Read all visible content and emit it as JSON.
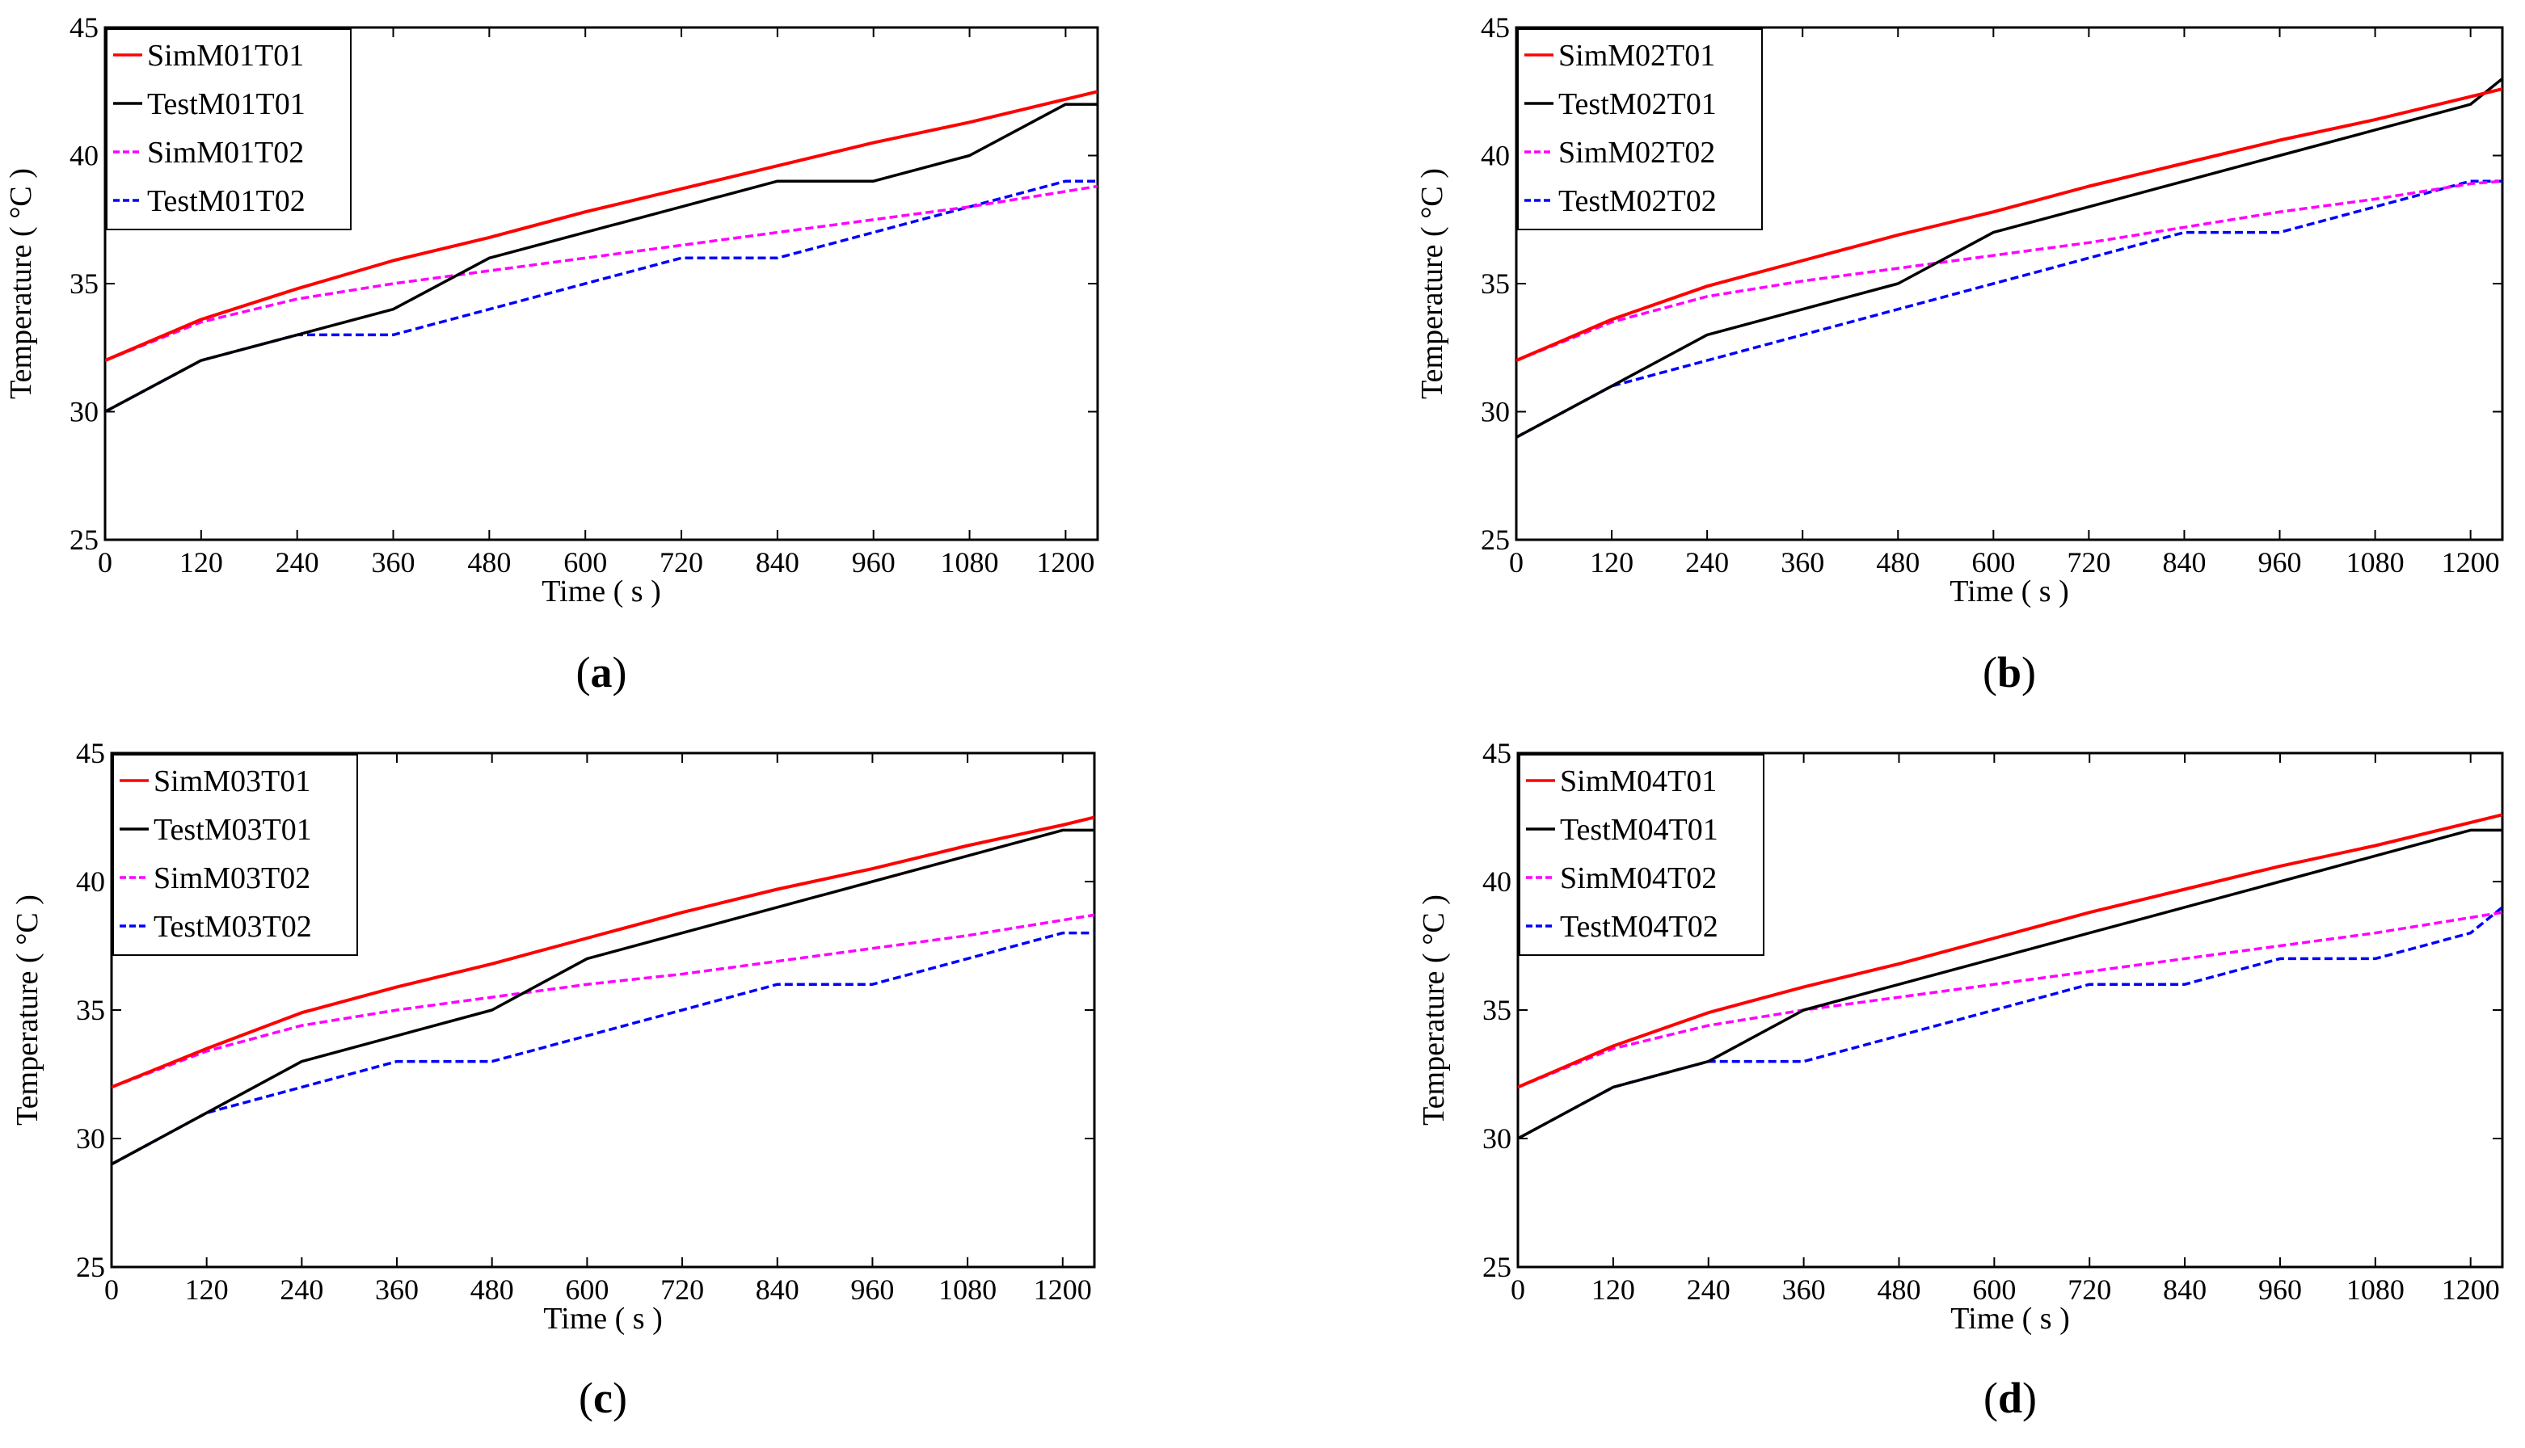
{
  "figure": {
    "panels": [
      "a",
      "b",
      "c",
      "d"
    ],
    "colors": {
      "sim_t01": "#ff0000",
      "test_t01": "#000000",
      "sim_t02": "#ff00ff",
      "test_t02": "#0000ff"
    }
  },
  "chart_data": [
    {
      "panel_label": "a",
      "type": "line",
      "xlabel": "Time ( s )",
      "ylabel": "Temperature ( °C )",
      "xlim": [
        0,
        1240
      ],
      "ylim": [
        25,
        45
      ],
      "xticks": [
        "0",
        "120",
        "240",
        "360",
        "480",
        "600",
        "720",
        "840",
        "960",
        "1080",
        "1200"
      ],
      "yticks": [
        "25",
        "30",
        "35",
        "40",
        "45"
      ],
      "legend_position": "top-left",
      "series": [
        {
          "name": "SimM01T01",
          "style": "solid",
          "color": "#ff0000",
          "x": [
            0,
            120,
            240,
            360,
            480,
            600,
            720,
            840,
            960,
            1080,
            1200,
            1240
          ],
          "y": [
            32,
            33.6,
            34.8,
            35.9,
            36.8,
            37.8,
            38.7,
            39.6,
            40.5,
            41.3,
            42.2,
            42.5
          ]
        },
        {
          "name": "TestM01T01",
          "style": "solid",
          "color": "#000000",
          "x": [
            0,
            120,
            240,
            360,
            480,
            600,
            720,
            840,
            960,
            1080,
            1200,
            1240
          ],
          "y": [
            30,
            32,
            33,
            34,
            36,
            37,
            38,
            39,
            39,
            40,
            42,
            42
          ]
        },
        {
          "name": "SimM01T02",
          "style": "dashed",
          "color": "#ff00ff",
          "x": [
            0,
            120,
            240,
            360,
            480,
            600,
            720,
            840,
            960,
            1080,
            1200,
            1240
          ],
          "y": [
            32,
            33.5,
            34.4,
            35,
            35.5,
            36,
            36.5,
            37,
            37.5,
            38,
            38.6,
            38.8
          ]
        },
        {
          "name": "TestM01T02",
          "style": "dashed",
          "color": "#0000ff",
          "x": [
            0,
            120,
            240,
            360,
            480,
            600,
            720,
            840,
            960,
            1080,
            1200,
            1240
          ],
          "y": [
            30,
            32,
            33,
            33,
            34,
            35,
            36,
            36,
            37,
            38,
            39,
            39
          ]
        }
      ]
    },
    {
      "panel_label": "b",
      "type": "line",
      "xlabel": "Time ( s )",
      "ylabel": "Temperature ( °C )",
      "xlim": [
        0,
        1240
      ],
      "ylim": [
        25,
        45
      ],
      "xticks": [
        "0",
        "120",
        "240",
        "360",
        "480",
        "600",
        "720",
        "840",
        "960",
        "1080",
        "1200"
      ],
      "yticks": [
        "25",
        "30",
        "35",
        "40",
        "45"
      ],
      "legend_position": "top-left",
      "series": [
        {
          "name": "SimM02T01",
          "style": "solid",
          "color": "#ff0000",
          "x": [
            0,
            120,
            240,
            360,
            480,
            600,
            720,
            840,
            960,
            1080,
            1200,
            1240
          ],
          "y": [
            32,
            33.6,
            34.9,
            35.9,
            36.9,
            37.8,
            38.8,
            39.7,
            40.6,
            41.4,
            42.3,
            42.6
          ]
        },
        {
          "name": "TestM02T01",
          "style": "solid",
          "color": "#000000",
          "x": [
            0,
            120,
            240,
            360,
            480,
            600,
            720,
            840,
            960,
            1080,
            1200,
            1240
          ],
          "y": [
            29,
            31,
            33,
            34,
            35,
            37,
            38,
            39,
            40,
            41,
            42,
            43
          ]
        },
        {
          "name": "SimM02T02",
          "style": "dashed",
          "color": "#ff00ff",
          "x": [
            0,
            120,
            240,
            360,
            480,
            600,
            720,
            840,
            960,
            1080,
            1200,
            1240
          ],
          "y": [
            32,
            33.5,
            34.5,
            35.1,
            35.6,
            36.1,
            36.6,
            37.2,
            37.8,
            38.3,
            38.9,
            39
          ]
        },
        {
          "name": "TestM02T02",
          "style": "dashed",
          "color": "#0000ff",
          "x": [
            0,
            120,
            240,
            360,
            480,
            600,
            720,
            840,
            960,
            1080,
            1200,
            1240
          ],
          "y": [
            29,
            31,
            32,
            33,
            34,
            35,
            36,
            37,
            37,
            38,
            39,
            39
          ]
        }
      ]
    },
    {
      "panel_label": "c",
      "type": "line",
      "xlabel": "Time ( s )",
      "ylabel": "Temperature ( °C )",
      "xlim": [
        0,
        1240
      ],
      "ylim": [
        25,
        45
      ],
      "xticks": [
        "0",
        "120",
        "240",
        "360",
        "480",
        "600",
        "720",
        "840",
        "960",
        "1080",
        "1200"
      ],
      "yticks": [
        "25",
        "30",
        "35",
        "40",
        "45"
      ],
      "legend_position": "top-left",
      "series": [
        {
          "name": "SimM03T01",
          "style": "solid",
          "color": "#ff0000",
          "x": [
            0,
            120,
            240,
            360,
            480,
            600,
            720,
            840,
            960,
            1080,
            1200,
            1240
          ],
          "y": [
            32,
            33.5,
            34.9,
            35.9,
            36.8,
            37.8,
            38.8,
            39.7,
            40.5,
            41.4,
            42.2,
            42.5
          ]
        },
        {
          "name": "TestM03T01",
          "style": "solid",
          "color": "#000000",
          "x": [
            0,
            120,
            240,
            360,
            480,
            600,
            720,
            840,
            960,
            1080,
            1200,
            1240
          ],
          "y": [
            29,
            31,
            33,
            34,
            35,
            37,
            38,
            39,
            40,
            41,
            42,
            42
          ]
        },
        {
          "name": "SimM03T02",
          "style": "dashed",
          "color": "#ff00ff",
          "x": [
            0,
            120,
            240,
            360,
            480,
            600,
            720,
            840,
            960,
            1080,
            1200,
            1240
          ],
          "y": [
            32,
            33.4,
            34.4,
            35,
            35.5,
            36,
            36.4,
            36.9,
            37.4,
            37.9,
            38.5,
            38.7
          ]
        },
        {
          "name": "TestM03T02",
          "style": "dashed",
          "color": "#0000ff",
          "x": [
            0,
            120,
            240,
            360,
            480,
            600,
            720,
            840,
            960,
            1080,
            1200,
            1240
          ],
          "y": [
            29,
            31,
            32,
            33,
            33,
            34,
            35,
            36,
            36,
            37,
            38,
            38
          ]
        }
      ]
    },
    {
      "panel_label": "d",
      "type": "line",
      "xlabel": "Time ( s )",
      "ylabel": "Temperature ( °C )",
      "xlim": [
        0,
        1240
      ],
      "ylim": [
        25,
        45
      ],
      "xticks": [
        "0",
        "120",
        "240",
        "360",
        "480",
        "600",
        "720",
        "840",
        "960",
        "1080",
        "1200"
      ],
      "yticks": [
        "25",
        "30",
        "35",
        "40",
        "45"
      ],
      "legend_position": "top-left",
      "series": [
        {
          "name": "SimM04T01",
          "style": "solid",
          "color": "#ff0000",
          "x": [
            0,
            120,
            240,
            360,
            480,
            600,
            720,
            840,
            960,
            1080,
            1200,
            1240
          ],
          "y": [
            32,
            33.6,
            34.9,
            35.9,
            36.8,
            37.8,
            38.8,
            39.7,
            40.6,
            41.4,
            42.3,
            42.6
          ]
        },
        {
          "name": "TestM04T01",
          "style": "solid",
          "color": "#000000",
          "x": [
            0,
            120,
            240,
            360,
            480,
            600,
            720,
            840,
            960,
            1080,
            1200,
            1240
          ],
          "y": [
            30,
            32,
            33,
            35,
            36,
            37,
            38,
            39,
            40,
            41,
            42,
            42
          ]
        },
        {
          "name": "SimM04T02",
          "style": "dashed",
          "color": "#ff00ff",
          "x": [
            0,
            120,
            240,
            360,
            480,
            600,
            720,
            840,
            960,
            1080,
            1200,
            1240
          ],
          "y": [
            32,
            33.5,
            34.4,
            35,
            35.5,
            36,
            36.5,
            37,
            37.5,
            38,
            38.6,
            38.8
          ]
        },
        {
          "name": "TestM04T02",
          "style": "dashed",
          "color": "#0000ff",
          "x": [
            0,
            120,
            240,
            360,
            480,
            600,
            720,
            840,
            960,
            1080,
            1200,
            1240
          ],
          "y": [
            30,
            32,
            33,
            33,
            34,
            35,
            36,
            36,
            37,
            37,
            38,
            39
          ]
        }
      ]
    }
  ]
}
